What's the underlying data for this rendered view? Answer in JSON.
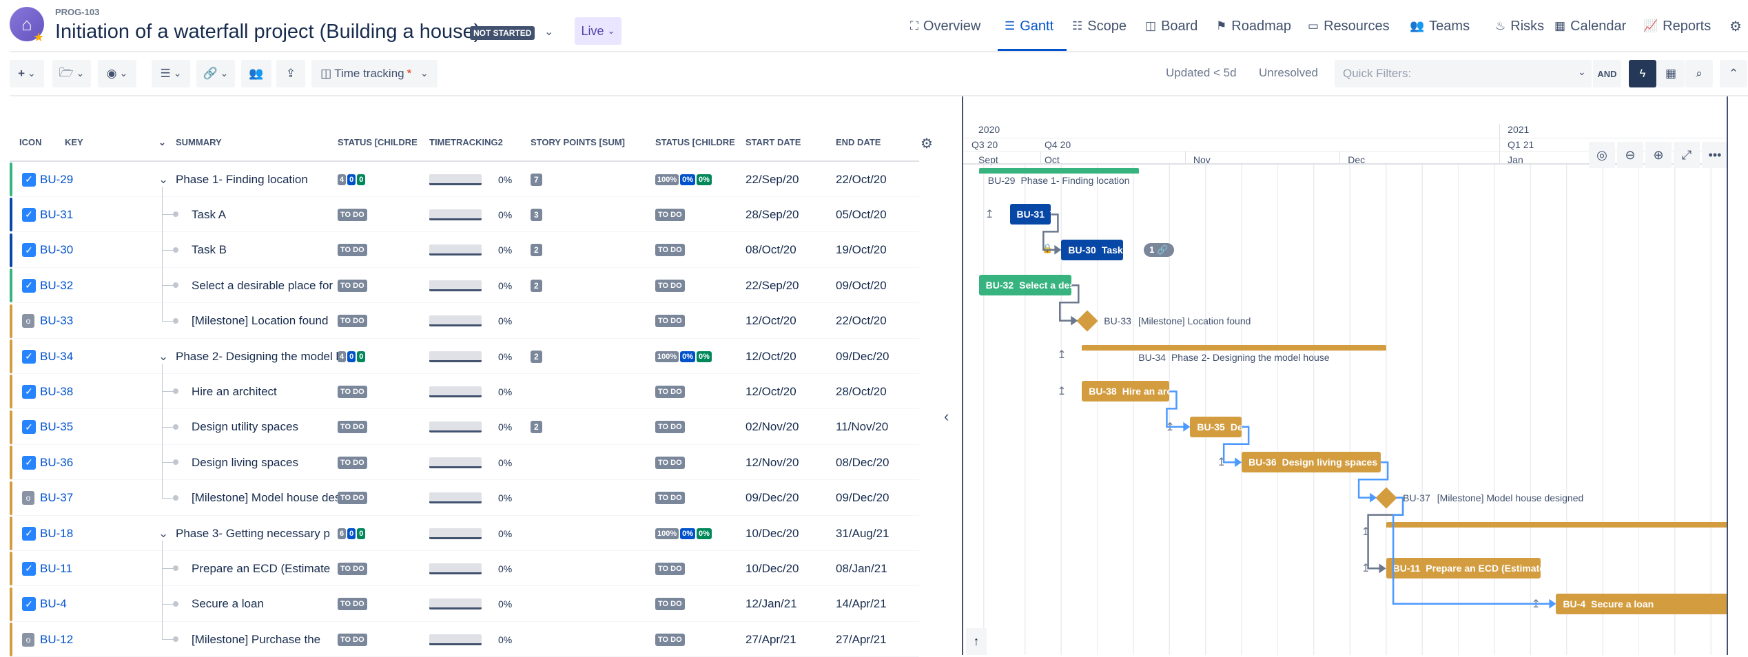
{
  "header": {
    "project_key": "PROG-103",
    "title": "Initiation of a waterfall project (Building a house)",
    "status_badge": "NOT STARTED",
    "live_label": "Live"
  },
  "nav": [
    {
      "label": "Overview",
      "icon": "sitemap-icon",
      "glyph": "⛶"
    },
    {
      "label": "Gantt",
      "icon": "gantt-icon",
      "glyph": "☰",
      "active": true
    },
    {
      "label": "Scope",
      "icon": "list-icon",
      "glyph": "☷"
    },
    {
      "label": "Board",
      "icon": "board-icon",
      "glyph": "◫"
    },
    {
      "label": "Roadmap",
      "icon": "signpost-icon",
      "glyph": "⚑"
    },
    {
      "label": "Resources",
      "icon": "resources-icon",
      "glyph": "▭"
    },
    {
      "label": "Teams",
      "icon": "teams-icon",
      "glyph": "👥"
    },
    {
      "label": "Risks",
      "icon": "fire-icon",
      "glyph": "♨"
    },
    {
      "label": "Calendar",
      "icon": "calendar-icon",
      "glyph": "▦"
    },
    {
      "label": "Reports",
      "icon": "chart-icon",
      "glyph": "📈"
    }
  ],
  "toolbar": {
    "time_tracking_label": "Time tracking",
    "required_mark": "*",
    "updated_filter": "Updated < 5d",
    "unresolved_filter": "Unresolved",
    "quick_filters_placeholder": "Quick Filters:",
    "and_label": "AND"
  },
  "columns": [
    "ICON",
    "KEY",
    "SUMMARY",
    "STATUS [CHILDRE",
    "TIMETRACKING2",
    "STORY POINTS [SUM]",
    "STATUS [CHILDRE",
    "START DATE",
    "END DATE"
  ],
  "colors": {
    "green": "#36B37E",
    "blue": "#0747A6",
    "gold": "#D39C3F",
    "accent": "#0052CC"
  },
  "rows": [
    {
      "key": "BU-29",
      "summary": "Phase 1- Finding location",
      "type": "task",
      "parent": true,
      "status_counts": [
        "4",
        "0",
        "0"
      ],
      "progress": "0%",
      "story_points": "7",
      "status2": [
        "100%",
        "0%",
        "0%"
      ],
      "start": "22/Sep/20",
      "end": "22/Oct/20",
      "color": "green"
    },
    {
      "key": "BU-31",
      "summary": "Task A",
      "type": "task",
      "status": "TO DO",
      "progress": "0%",
      "story_points": "3",
      "status2_text": "TO DO",
      "start": "28/Sep/20",
      "end": "05/Oct/20",
      "color": "blue"
    },
    {
      "key": "BU-30",
      "summary": "Task B",
      "type": "task",
      "status": "TO DO",
      "progress": "0%",
      "story_points": "2",
      "status2_text": "TO DO",
      "start": "08/Oct/20",
      "end": "19/Oct/20",
      "color": "blue"
    },
    {
      "key": "BU-32",
      "summary": "Select a desirable place for",
      "type": "task",
      "status": "TO DO",
      "progress": "0%",
      "story_points": "2",
      "status2_text": "TO DO",
      "start": "22/Sep/20",
      "end": "09/Oct/20",
      "color": "green"
    },
    {
      "key": "BU-33",
      "summary": "[Milestone] Location found",
      "type": "milestone",
      "status": "TO DO",
      "progress": "0%",
      "status2_text": "TO DO",
      "start": "12/Oct/20",
      "end": "22/Oct/20",
      "color": "gold"
    },
    {
      "key": "BU-34",
      "summary": "Phase 2- Designing the model house",
      "type": "task",
      "parent": true,
      "status_counts": [
        "4",
        "0",
        "0"
      ],
      "progress": "0%",
      "story_points": "2",
      "status2": [
        "100%",
        "0%",
        "0%"
      ],
      "start": "12/Oct/20",
      "end": "09/Dec/20",
      "color": "gold"
    },
    {
      "key": "BU-38",
      "summary": "Hire an architect",
      "type": "task",
      "status": "TO DO",
      "progress": "0%",
      "status2_text": "TO DO",
      "start": "12/Oct/20",
      "end": "28/Oct/20",
      "color": "gold"
    },
    {
      "key": "BU-35",
      "summary": "Design utility spaces",
      "type": "task",
      "status": "TO DO",
      "progress": "0%",
      "story_points": "2",
      "status2_text": "TO DO",
      "start": "02/Nov/20",
      "end": "11/Nov/20",
      "color": "gold"
    },
    {
      "key": "BU-36",
      "summary": "Design living spaces",
      "type": "task",
      "status": "TO DO",
      "progress": "0%",
      "status2_text": "TO DO",
      "start": "12/Nov/20",
      "end": "08/Dec/20",
      "color": "gold"
    },
    {
      "key": "BU-37",
      "summary": "[Milestone] Model house designed",
      "type": "milestone",
      "status": "TO DO",
      "progress": "0%",
      "status2_text": "TO DO",
      "start": "09/Dec/20",
      "end": "09/Dec/20",
      "color": "gold"
    },
    {
      "key": "BU-18",
      "summary": "Phase 3- Getting necessary p",
      "type": "task",
      "parent": true,
      "status_counts": [
        "6",
        "0",
        "0"
      ],
      "progress": "0%",
      "status2": [
        "100%",
        "0%",
        "0%"
      ],
      "start": "10/Dec/20",
      "end": "31/Aug/21",
      "color": "gold"
    },
    {
      "key": "BU-11",
      "summary": "Prepare an ECD (Estimate",
      "type": "task",
      "status": "TO DO",
      "progress": "0%",
      "status2_text": "TO DO",
      "start": "10/Dec/20",
      "end": "08/Jan/21",
      "color": "gold"
    },
    {
      "key": "BU-4",
      "summary": "Secure a loan",
      "type": "task",
      "status": "TO DO",
      "progress": "0%",
      "status2_text": "TO DO",
      "start": "12/Jan/21",
      "end": "14/Apr/21",
      "color": "gold"
    },
    {
      "key": "BU-12",
      "summary": "[Milestone] Purchase the",
      "type": "milestone",
      "status": "TO DO",
      "progress": "0%",
      "status2_text": "TO DO",
      "start": "27/Apr/21",
      "end": "27/Apr/21",
      "color": "gold"
    }
  ],
  "gantt": {
    "years": [
      "2020",
      "2021"
    ],
    "quarters": [
      "Q3 20",
      "Q4 20",
      "Q1 21"
    ],
    "months": [
      "Sept",
      "Oct",
      "Nov",
      "Dec",
      "Jan"
    ],
    "link_badge": "1",
    "dependencies": [
      {
        "from": "BU-31",
        "to": "BU-30",
        "color": "#6B778C"
      },
      {
        "from": "BU-32",
        "to": "BU-33",
        "color": "#6B778C"
      },
      {
        "from": "BU-38",
        "to": "BU-35",
        "color": "#4C9AFF"
      },
      {
        "from": "BU-35",
        "to": "BU-36",
        "color": "#4C9AFF"
      },
      {
        "from": "BU-36",
        "to": "BU-37",
        "color": "#4C9AFF"
      },
      {
        "from": "BU-37",
        "to": "BU-11",
        "color": "#6B778C"
      },
      {
        "from": "BU-37",
        "to": "BU-4",
        "color": "#4C9AFF"
      }
    ]
  }
}
